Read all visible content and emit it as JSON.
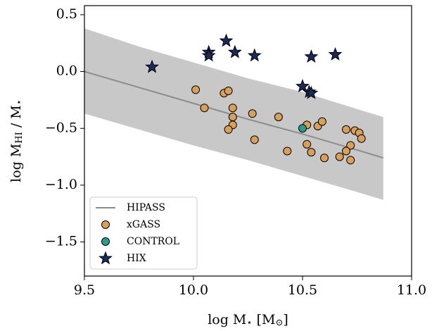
{
  "chart_data": {
    "type": "scatter",
    "x_label": [
      "log M",
      "⋆",
      " [M",
      "⊙",
      "]"
    ],
    "y_label": [
      "log M",
      "HI",
      " / M",
      "⋆"
    ],
    "xlim": [
      9.5,
      11.0
    ],
    "ylim": [
      -1.8,
      0.58
    ],
    "xticks": [
      9.5,
      {
        "value": 10.0,
        "label": "10.0"
      },
      10.5,
      {
        "value": 11.0,
        "label": "11.0"
      }
    ],
    "yticks": [
      0.5,
      {
        "value": 0,
        "label": "0.0"
      },
      {
        "value": -0.5,
        "label": "−0.5"
      },
      {
        "value": -1.0,
        "label": "−1.0"
      },
      {
        "value": -1.5,
        "label": "−1.5"
      }
    ],
    "legend": "lower left",
    "series": [
      {
        "name": "HIPASS",
        "marker": "line",
        "color": "#8c8c8c",
        "band_color": "#c8c8c8",
        "x": [
          9.5,
          9.75,
          10.0,
          10.25,
          10.5,
          10.75,
          10.87
        ],
        "values": [
          0.0,
          -0.14,
          -0.28,
          -0.42,
          -0.55,
          -0.69,
          -0.76
        ],
        "upper": [
          0.38,
          0.22,
          0.08,
          -0.06,
          -0.18,
          -0.33,
          -0.4
        ],
        "lower": [
          -0.37,
          -0.51,
          -0.65,
          -0.78,
          -0.92,
          -1.06,
          -1.13
        ]
      },
      {
        "name": "xGASS",
        "marker": "circle",
        "color": "#d9a05b",
        "x": [
          10.01,
          10.05,
          10.14,
          10.16,
          10.18,
          10.18,
          10.18,
          10.16,
          10.27,
          10.28,
          10.39,
          10.43,
          10.52,
          10.57,
          10.59,
          10.54,
          10.52,
          10.6,
          10.7,
          10.74,
          10.76,
          10.77,
          10.72,
          10.7,
          10.67,
          10.72
        ],
        "values": [
          -0.16,
          -0.32,
          -0.19,
          -0.17,
          -0.32,
          -0.4,
          -0.47,
          -0.51,
          -0.37,
          -0.6,
          -0.4,
          -0.7,
          -0.47,
          -0.48,
          -0.44,
          -0.71,
          -0.64,
          -0.76,
          -0.51,
          -0.52,
          -0.54,
          -0.59,
          -0.65,
          -0.7,
          -0.75,
          -0.78
        ]
      },
      {
        "name": "CONTROL",
        "marker": "circle",
        "color": "#2a9d8f",
        "x": [
          10.5
        ],
        "values": [
          -0.5
        ]
      },
      {
        "name": "HIX",
        "marker": "star",
        "color": "#1b2a5e",
        "x": [
          9.81,
          10.07,
          10.07,
          10.15,
          10.19,
          10.28,
          10.5,
          10.53,
          10.54,
          10.54,
          10.65
        ],
        "values": [
          0.04,
          0.17,
          0.14,
          0.27,
          0.17,
          0.14,
          -0.13,
          -0.18,
          -0.19,
          0.13,
          0.15
        ]
      }
    ]
  }
}
